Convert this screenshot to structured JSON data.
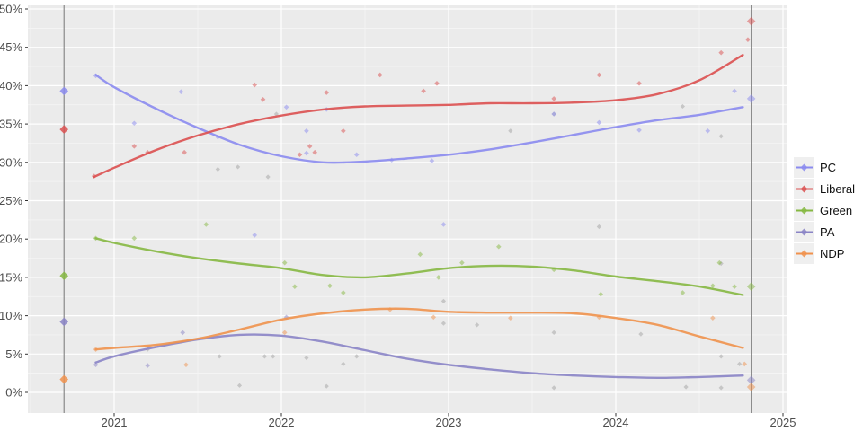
{
  "legend": {
    "items": [
      {
        "label": "PC",
        "color": "#8b8bef"
      },
      {
        "label": "Liberal",
        "color": "#db5050"
      },
      {
        "label": "Green",
        "color": "#86b842"
      },
      {
        "label": "PA",
        "color": "#8a84c6"
      },
      {
        "label": "NDP",
        "color": "#f0924d"
      }
    ]
  },
  "colors": {
    "panel_background": "#ebebeb",
    "grid_major": "#ffffff",
    "grid_minor": "#ffffff",
    "axis_text": "#4d4d4d",
    "event_line": "#808080",
    "other_points": "#9a9a9a"
  },
  "chart_data": {
    "type": "line",
    "title": "",
    "xlabel": "",
    "ylabel": "",
    "grid": true,
    "legend_position": "right",
    "x_axis": {
      "ticks": [
        2021,
        2022,
        2023,
        2024,
        2025
      ],
      "tick_labels": [
        "2021",
        "2022",
        "2023",
        "2024",
        "2025"
      ],
      "range": [
        2020.48,
        2025.03
      ]
    },
    "y_axis": {
      "ticks": [
        0,
        5,
        10,
        15,
        20,
        25,
        30,
        35,
        40,
        45,
        50
      ],
      "tick_labels": [
        "0%",
        "5%",
        "10%",
        "15%",
        "20%",
        "25%",
        "30%",
        "35%",
        "40%",
        "45%",
        "50%"
      ],
      "range": [
        0,
        50
      ]
    },
    "elections": [
      {
        "year": 2020.7,
        "opacity": 0.85,
        "results": {
          "PC": 39.3,
          "Liberal": 34.3,
          "Green": 15.2,
          "PA": 9.2,
          "NDP": 1.7
        }
      },
      {
        "year": 2024.81,
        "opacity": 0.5,
        "results": {
          "Liberal": 48.4,
          "PC": 38.3,
          "Green": 13.8,
          "PA": 1.6,
          "NDP": 0.7
        }
      }
    ],
    "series": [
      {
        "name": "PC",
        "color": "#8b8bef",
        "trend": [
          [
            2020.89,
            41.4
          ],
          [
            2021.0,
            39.8
          ],
          [
            2021.25,
            37.0
          ],
          [
            2021.5,
            34.5
          ],
          [
            2021.75,
            32.3
          ],
          [
            2022.0,
            30.8
          ],
          [
            2022.25,
            30.0
          ],
          [
            2022.5,
            30.1
          ],
          [
            2022.75,
            30.5
          ],
          [
            2023.0,
            31.0
          ],
          [
            2023.25,
            31.7
          ],
          [
            2023.5,
            32.6
          ],
          [
            2023.75,
            33.6
          ],
          [
            2024.0,
            34.6
          ],
          [
            2024.25,
            35.5
          ],
          [
            2024.5,
            36.2
          ],
          [
            2024.76,
            37.2
          ]
        ],
        "polls": [
          [
            2020.89,
            41.3
          ],
          [
            2021.12,
            35.1
          ],
          [
            2021.4,
            39.2
          ],
          [
            2021.62,
            33.3
          ],
          [
            2021.84,
            20.5
          ],
          [
            2022.03,
            37.2
          ],
          [
            2022.15,
            34.1
          ],
          [
            2022.15,
            31.2
          ],
          [
            2022.27,
            36.9
          ],
          [
            2022.45,
            31.0
          ],
          [
            2022.66,
            30.3
          ],
          [
            2022.9,
            30.2
          ],
          [
            2022.97,
            21.9
          ],
          [
            2023.63,
            36.3
          ],
          [
            2023.9,
            35.2
          ],
          [
            2024.14,
            34.2
          ],
          [
            2024.55,
            34.1
          ],
          [
            2024.71,
            39.3
          ]
        ]
      },
      {
        "name": "Liberal",
        "color": "#db5050",
        "trend": [
          [
            2020.88,
            28.1
          ],
          [
            2021.0,
            29.3
          ],
          [
            2021.25,
            31.6
          ],
          [
            2021.5,
            33.5
          ],
          [
            2021.75,
            35.0
          ],
          [
            2022.0,
            36.1
          ],
          [
            2022.25,
            36.9
          ],
          [
            2022.5,
            37.3
          ],
          [
            2022.75,
            37.4
          ],
          [
            2023.0,
            37.5
          ],
          [
            2023.25,
            37.7
          ],
          [
            2023.5,
            37.7
          ],
          [
            2023.75,
            37.8
          ],
          [
            2024.0,
            38.1
          ],
          [
            2024.25,
            38.9
          ],
          [
            2024.5,
            40.7
          ],
          [
            2024.76,
            44.0
          ]
        ],
        "polls": [
          [
            2020.88,
            28.2
          ],
          [
            2021.12,
            32.1
          ],
          [
            2021.2,
            31.3
          ],
          [
            2021.42,
            31.3
          ],
          [
            2021.84,
            40.1
          ],
          [
            2021.89,
            38.2
          ],
          [
            2022.11,
            31.0
          ],
          [
            2022.17,
            32.1
          ],
          [
            2022.2,
            31.3
          ],
          [
            2022.27,
            39.1
          ],
          [
            2022.37,
            34.1
          ],
          [
            2022.59,
            41.4
          ],
          [
            2022.85,
            39.3
          ],
          [
            2022.93,
            40.3
          ],
          [
            2023.63,
            38.3
          ],
          [
            2023.9,
            41.4
          ],
          [
            2024.14,
            40.3
          ],
          [
            2024.63,
            44.3
          ],
          [
            2024.79,
            46.0
          ]
        ]
      },
      {
        "name": "Green",
        "color": "#86b842",
        "trend": [
          [
            2020.89,
            20.1
          ],
          [
            2021.0,
            19.5
          ],
          [
            2021.25,
            18.4
          ],
          [
            2021.5,
            17.5
          ],
          [
            2021.75,
            16.8
          ],
          [
            2022.0,
            16.2
          ],
          [
            2022.25,
            15.3
          ],
          [
            2022.5,
            15.0
          ],
          [
            2022.75,
            15.5
          ],
          [
            2023.0,
            16.2
          ],
          [
            2023.25,
            16.5
          ],
          [
            2023.5,
            16.4
          ],
          [
            2023.75,
            15.9
          ],
          [
            2024.0,
            15.1
          ],
          [
            2024.25,
            14.5
          ],
          [
            2024.5,
            13.8
          ],
          [
            2024.76,
            12.7
          ]
        ],
        "polls": [
          [
            2020.89,
            20.1
          ],
          [
            2021.12,
            20.1
          ],
          [
            2021.55,
            21.9
          ],
          [
            2022.02,
            16.9
          ],
          [
            2022.08,
            13.8
          ],
          [
            2022.29,
            13.9
          ],
          [
            2022.37,
            13.0
          ],
          [
            2022.83,
            18.0
          ],
          [
            2022.94,
            15.0
          ],
          [
            2023.08,
            16.9
          ],
          [
            2023.3,
            19.0
          ],
          [
            2023.63,
            16.0
          ],
          [
            2023.91,
            12.8
          ],
          [
            2024.4,
            13.0
          ],
          [
            2024.58,
            13.9
          ],
          [
            2024.62,
            16.9
          ],
          [
            2024.71,
            13.8
          ]
        ]
      },
      {
        "name": "PA",
        "color": "#8a84c6",
        "trend": [
          [
            2020.89,
            3.9
          ],
          [
            2021.0,
            4.7
          ],
          [
            2021.25,
            5.9
          ],
          [
            2021.5,
            6.9
          ],
          [
            2021.75,
            7.5
          ],
          [
            2022.0,
            7.4
          ],
          [
            2022.25,
            6.6
          ],
          [
            2022.5,
            5.5
          ],
          [
            2022.75,
            4.4
          ],
          [
            2023.0,
            3.6
          ],
          [
            2023.25,
            3.0
          ],
          [
            2023.5,
            2.5
          ],
          [
            2023.75,
            2.2
          ],
          [
            2024.0,
            2.0
          ],
          [
            2024.25,
            1.9
          ],
          [
            2024.5,
            2.0
          ],
          [
            2024.76,
            2.2
          ]
        ],
        "polls": [
          [
            2020.89,
            3.6
          ],
          [
            2021.2,
            3.5
          ],
          [
            2021.41,
            7.8
          ],
          [
            2022.03,
            9.8
          ]
        ]
      },
      {
        "name": "NDP",
        "color": "#f0924d",
        "trend": [
          [
            2020.89,
            5.6
          ],
          [
            2021.0,
            5.8
          ],
          [
            2021.25,
            6.2
          ],
          [
            2021.5,
            7.0
          ],
          [
            2021.75,
            8.2
          ],
          [
            2022.0,
            9.5
          ],
          [
            2022.25,
            10.3
          ],
          [
            2022.5,
            10.8
          ],
          [
            2022.75,
            10.9
          ],
          [
            2023.0,
            10.5
          ],
          [
            2023.25,
            10.4
          ],
          [
            2023.5,
            10.4
          ],
          [
            2023.75,
            10.3
          ],
          [
            2024.0,
            9.7
          ],
          [
            2024.25,
            8.8
          ],
          [
            2024.5,
            7.3
          ],
          [
            2024.76,
            5.8
          ]
        ],
        "polls": [
          [
            2020.89,
            5.6
          ],
          [
            2021.43,
            3.6
          ],
          [
            2022.02,
            7.8
          ],
          [
            2022.65,
            10.8
          ],
          [
            2022.91,
            9.8
          ],
          [
            2023.37,
            9.7
          ],
          [
            2023.9,
            9.8
          ],
          [
            2024.58,
            9.7
          ],
          [
            2024.77,
            3.7
          ]
        ]
      }
    ],
    "other_points": [
      [
        2021.2,
        5.6
      ],
      [
        2021.62,
        29.1
      ],
      [
        2021.63,
        4.7
      ],
      [
        2021.74,
        29.4
      ],
      [
        2021.75,
        0.9
      ],
      [
        2021.9,
        4.7
      ],
      [
        2021.95,
        4.7
      ],
      [
        2021.92,
        28.1
      ],
      [
        2021.97,
        36.3
      ],
      [
        2022.15,
        4.5
      ],
      [
        2022.27,
        0.8
      ],
      [
        2022.37,
        3.7
      ],
      [
        2022.45,
        4.7
      ],
      [
        2022.97,
        11.9
      ],
      [
        2022.97,
        9.0
      ],
      [
        2023.17,
        8.8
      ],
      [
        2023.37,
        34.1
      ],
      [
        2023.63,
        36.3
      ],
      [
        2023.63,
        7.8
      ],
      [
        2023.63,
        0.6
      ],
      [
        2023.9,
        21.6
      ],
      [
        2024.15,
        7.6
      ],
      [
        2024.4,
        37.3
      ],
      [
        2024.42,
        0.7
      ],
      [
        2024.63,
        33.4
      ],
      [
        2024.63,
        16.8
      ],
      [
        2024.63,
        4.7
      ],
      [
        2024.63,
        0.6
      ],
      [
        2024.74,
        3.7
      ]
    ]
  }
}
